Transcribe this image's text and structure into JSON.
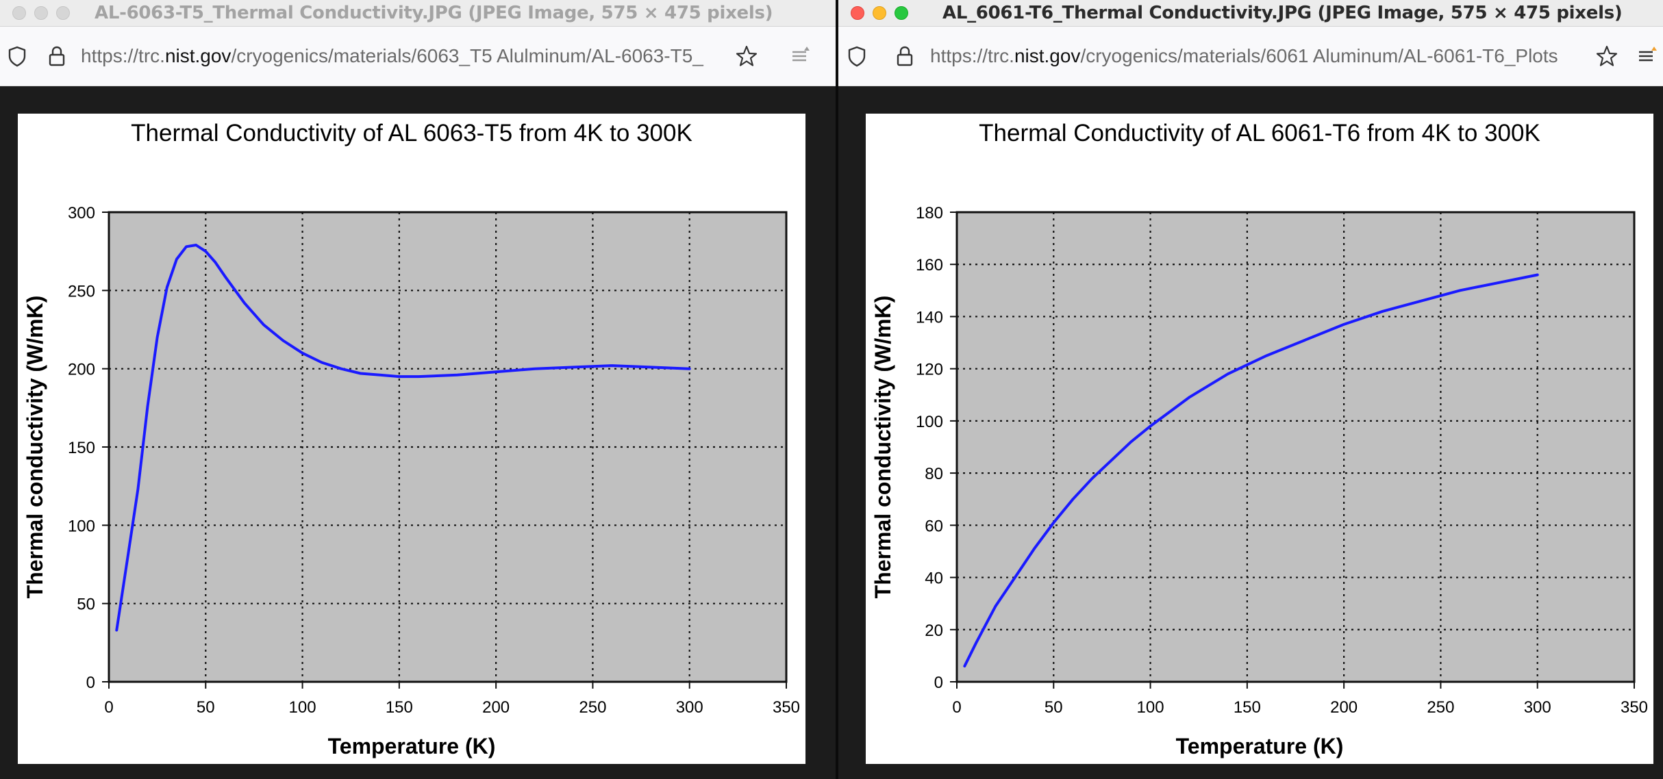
{
  "windows": [
    {
      "title": "AL-6063-T5_Thermal Conductivity.JPG (JPEG Image, 575 × 475 pixels)",
      "url_prefix": "https://trc.",
      "url_host": "nist.gov",
      "url_path": "/cryogenics/materials/6063_T5 Alulminum/AL-6063-T5_",
      "active": false
    },
    {
      "title": "AL_6061-T6_Thermal Conductivity.JPG (JPEG Image, 575 × 475 pixels)",
      "url_prefix": "https://trc.",
      "url_host": "nist.gov",
      "url_path": "/cryogenics/materials/6061 Aluminum/AL-6061-T6_Plots",
      "active": true
    }
  ],
  "icons": [
    "shield-icon",
    "lock-icon",
    "star-icon",
    "reader-menu-icon"
  ],
  "colors": {
    "plot_bg": "#c0c0c0",
    "series": "#1a1aff",
    "grid": "#000000"
  },
  "chart_data": [
    {
      "type": "line",
      "title": "Thermal Conductivity of AL 6063-T5 from 4K to 300K",
      "xlabel": "Temperature (K)",
      "ylabel": "Thermal conductivity (W/mK)",
      "xlim": [
        0,
        350
      ],
      "ylim": [
        0,
        300
      ],
      "xticks": [
        0,
        50,
        100,
        150,
        200,
        250,
        300,
        350
      ],
      "yticks": [
        0,
        50,
        100,
        150,
        200,
        250,
        300
      ],
      "grid": true,
      "series": [
        {
          "x": [
            4,
            10,
            15,
            20,
            25,
            30,
            35,
            40,
            45,
            50,
            55,
            60,
            70,
            80,
            90,
            100,
            110,
            120,
            130,
            140,
            150,
            160,
            180,
            200,
            220,
            240,
            260,
            280,
            300
          ],
          "y": [
            33,
            82,
            123,
            176,
            220,
            252,
            270,
            278,
            279,
            275,
            268,
            259,
            242,
            228,
            218,
            210,
            204,
            200,
            197,
            196,
            195,
            195,
            196,
            198,
            200,
            201,
            202,
            201,
            200
          ]
        }
      ]
    },
    {
      "type": "line",
      "title": "Thermal Conductivity of AL 6061-T6 from 4K to 300K",
      "xlabel": "Temperature (K)",
      "ylabel": "Thermal conductivity (W/mK)",
      "xlim": [
        0,
        350
      ],
      "ylim": [
        0,
        180
      ],
      "xticks": [
        0,
        50,
        100,
        150,
        200,
        250,
        300,
        350
      ],
      "yticks": [
        0,
        20,
        40,
        60,
        80,
        100,
        120,
        140,
        160,
        180
      ],
      "grid": true,
      "series": [
        {
          "x": [
            4,
            10,
            20,
            30,
            40,
            50,
            60,
            70,
            80,
            90,
            100,
            120,
            140,
            160,
            180,
            200,
            220,
            240,
            260,
            280,
            300
          ],
          "y": [
            6,
            15,
            29,
            40,
            51,
            61,
            70,
            78,
            85,
            92,
            98,
            109,
            118,
            125,
            131,
            137,
            142,
            146,
            150,
            153,
            156
          ]
        }
      ]
    }
  ]
}
